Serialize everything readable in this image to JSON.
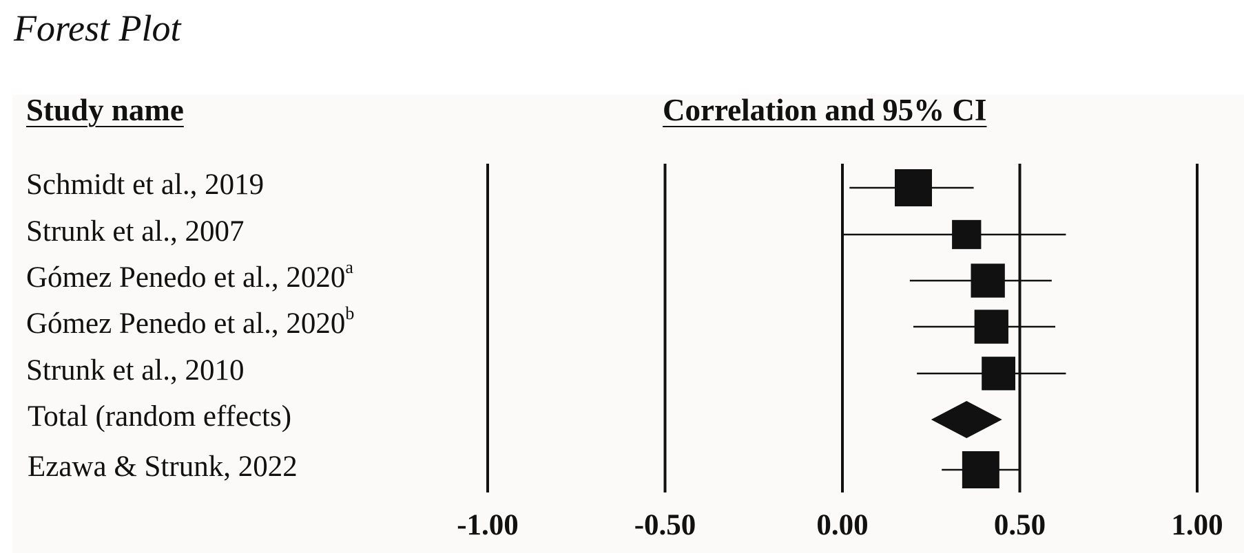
{
  "figure": {
    "title": "Forest Plot"
  },
  "headers": {
    "study": "Study name",
    "effect": "Correlation and 95% CI"
  },
  "chart_data": {
    "type": "forest",
    "xlim": [
      -1.0,
      1.0
    ],
    "ticks": [
      -1.0,
      -0.5,
      0.0,
      0.5,
      1.0
    ],
    "tick_labels": [
      "-1.00",
      "-0.50",
      "0.00",
      "0.50",
      "1.00"
    ],
    "grid": "vertical lines at ticks",
    "rows": [
      {
        "label": "Schmidt et al., 2019",
        "superscript": "",
        "kind": "study",
        "estimate": 0.2,
        "lower": 0.02,
        "upper": 0.37,
        "weight": 1.0
      },
      {
        "label": "Strunk et al., 2007",
        "superscript": "",
        "kind": "study",
        "estimate": 0.35,
        "lower": 0.0,
        "upper": 0.63,
        "weight": 0.55
      },
      {
        "label": "Gómez Penedo et al., 2020",
        "superscript": "a",
        "kind": "study",
        "estimate": 0.41,
        "lower": 0.19,
        "upper": 0.59,
        "weight": 0.82
      },
      {
        "label": "Gómez Penedo et al., 2020",
        "superscript": "b",
        "kind": "study",
        "estimate": 0.42,
        "lower": 0.2,
        "upper": 0.6,
        "weight": 0.82
      },
      {
        "label": "Strunk et al., 2010",
        "superscript": "",
        "kind": "study",
        "estimate": 0.44,
        "lower": 0.21,
        "upper": 0.63,
        "weight": 0.8
      },
      {
        "label": "Total (random effects)",
        "superscript": "",
        "kind": "summary",
        "estimate": 0.35,
        "lower": 0.25,
        "upper": 0.45
      },
      {
        "label": "Ezawa & Strunk, 2022",
        "superscript": "",
        "kind": "study",
        "estimate": 0.39,
        "lower": 0.28,
        "upper": 0.5,
        "weight": 1.0
      }
    ]
  },
  "colors": {
    "ink": "#111111",
    "panel": "#fbfaf8"
  }
}
